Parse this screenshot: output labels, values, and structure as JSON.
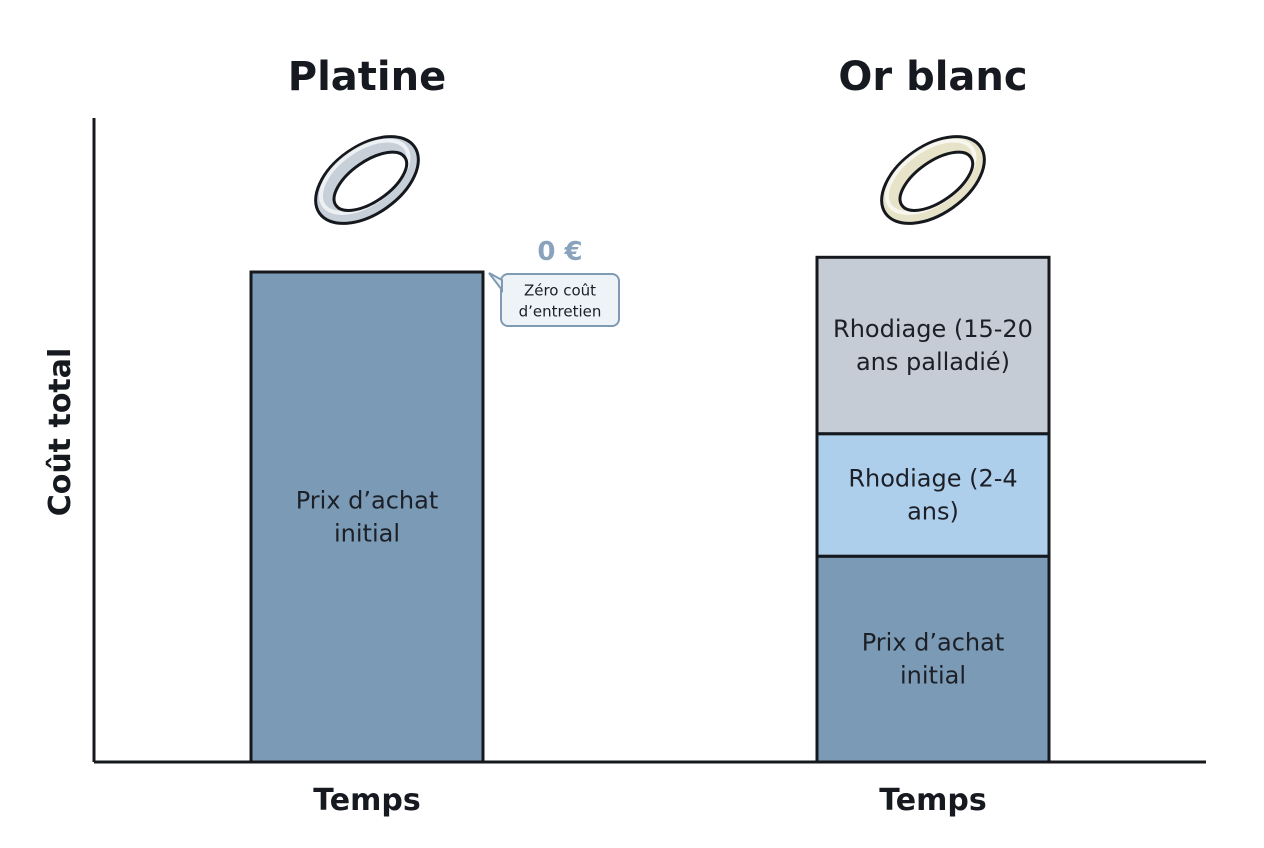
{
  "chart_data": {
    "type": "bar",
    "stacked": true,
    "ylabel": "Coût total",
    "y_ticks_shown": false,
    "grid": false,
    "legend": "none",
    "columns": [
      {
        "title": "Platine",
        "xlabel": "Temps",
        "icon": "ring-platinum-icon",
        "ring_color": "#c7d0d9",
        "segments": [
          {
            "label": "Prix d’achat initial",
            "value": 100,
            "color": "#7a9ab5"
          }
        ],
        "annotation": {
          "value": "0 €",
          "text": "Zéro coût d’entretien"
        }
      },
      {
        "title": "Or blanc",
        "xlabel": "Temps",
        "icon": "ring-white-gold-icon",
        "ring_color": "#e7e3c9",
        "segments": [
          {
            "label": "Prix d’achat initial",
            "value": 42,
            "color": "#7a9ab5"
          },
          {
            "label": "Rhodiage (2-4 ans)",
            "value": 25,
            "color": "#aecfec"
          },
          {
            "label": "Rhodiage (15-20 ans palladié)",
            "value": 36,
            "color": "#c5ccd5"
          }
        ]
      }
    ]
  }
}
